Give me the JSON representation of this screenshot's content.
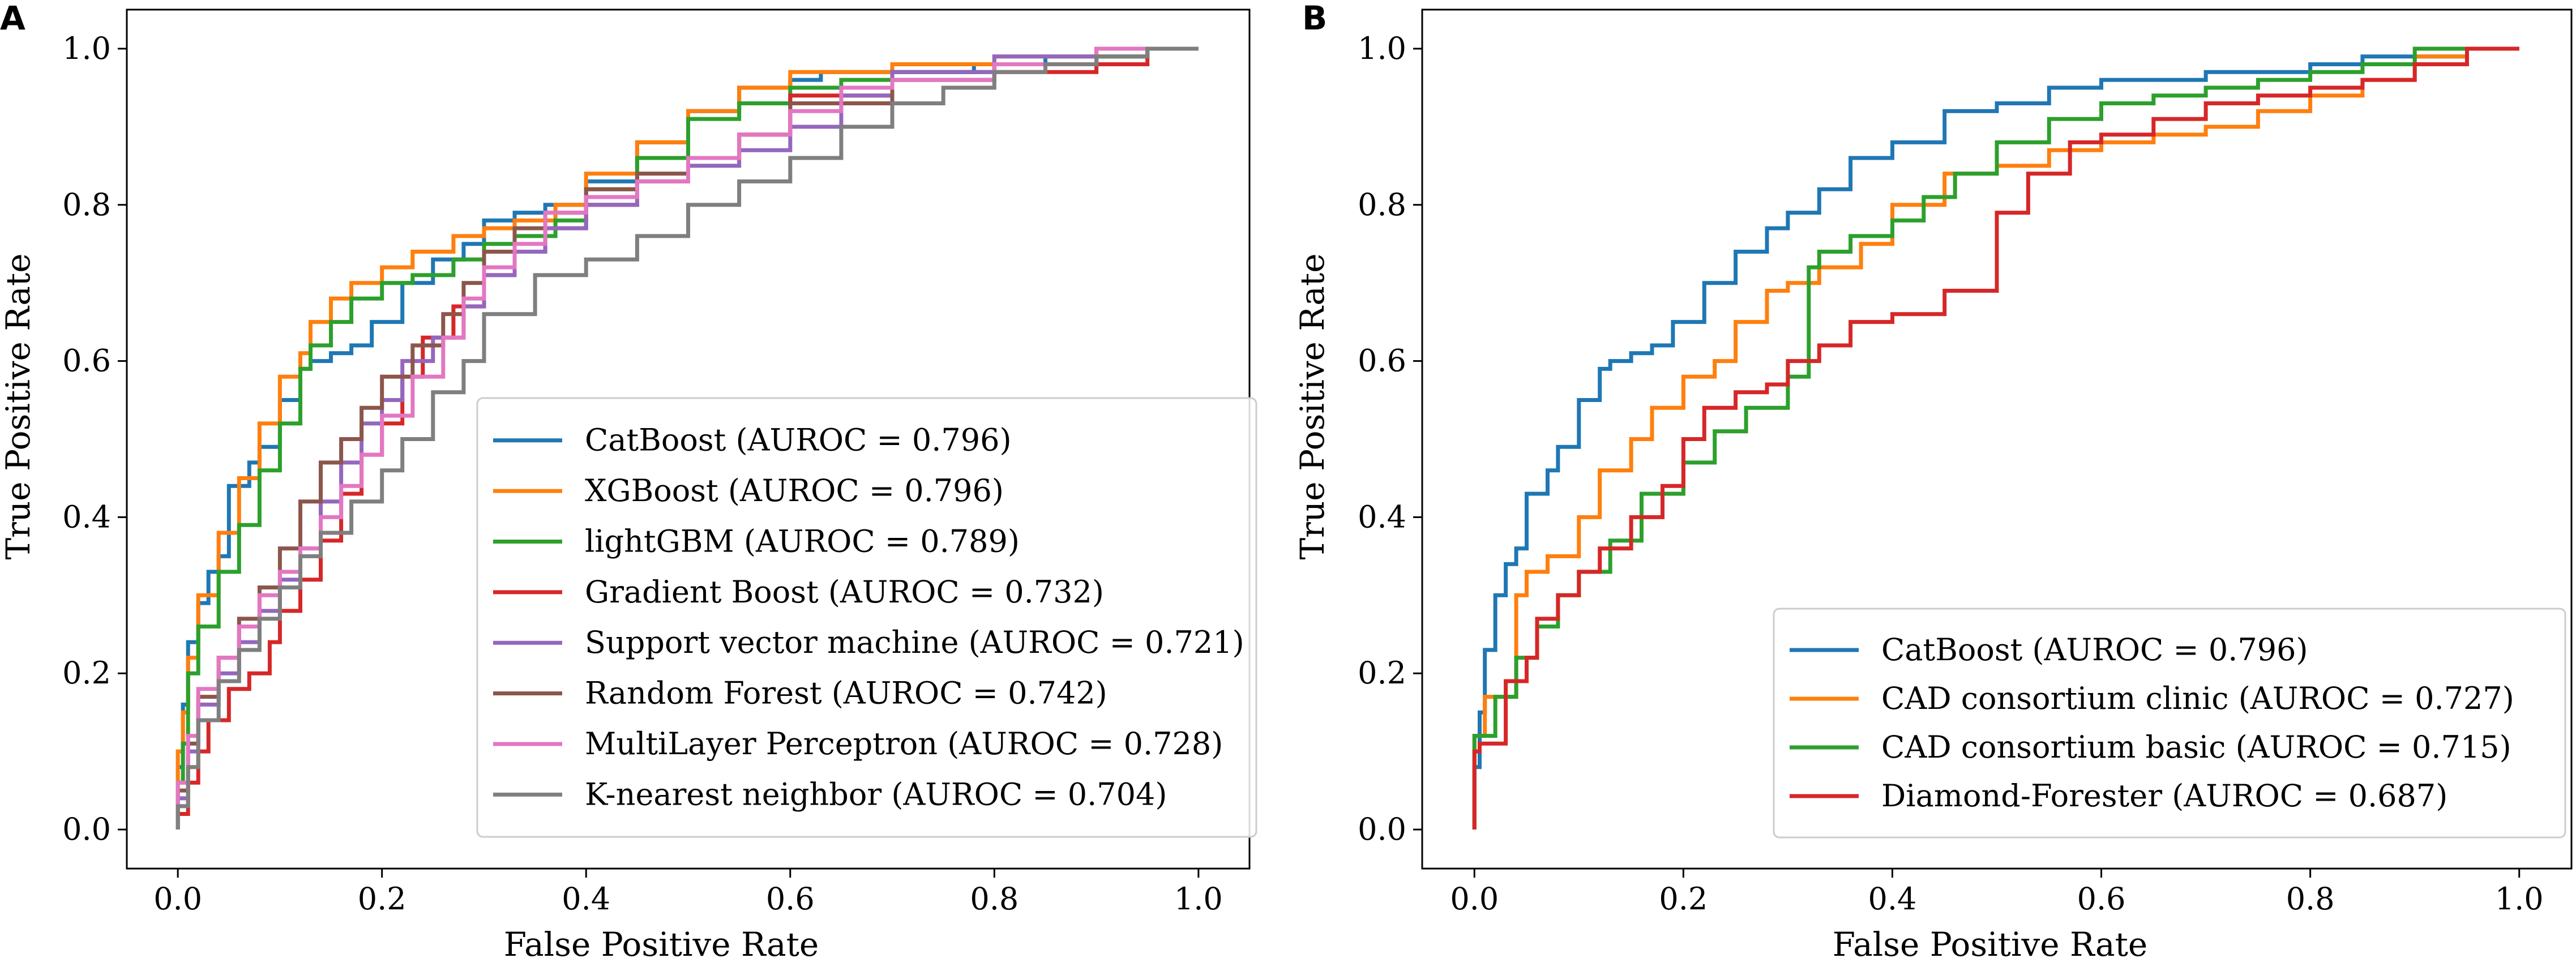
{
  "panel_letters": [
    "A",
    "B"
  ],
  "chart_data": [
    {
      "type": "line",
      "panel": "A",
      "xlabel": "False Positive Rate",
      "ylabel": "True Positive Rate",
      "xlim": [
        -0.05,
        1.05
      ],
      "ylim": [
        -0.05,
        1.05
      ],
      "xticks": [
        0.0,
        0.2,
        0.4,
        0.6,
        0.8,
        1.0
      ],
      "yticks": [
        0.0,
        0.2,
        0.4,
        0.6,
        0.8,
        1.0
      ],
      "xtick_labels": [
        "0.0",
        "0.2",
        "0.4",
        "0.6",
        "0.8",
        "1.0"
      ],
      "ytick_labels": [
        "0.0",
        "0.2",
        "0.4",
        "0.6",
        "0.8",
        "1.0"
      ],
      "grid": false,
      "legend_position": "lower-right",
      "series": [
        {
          "name": "CatBoost (AUROC = 0.796)",
          "color": "#1f77b4",
          "x": [
            0,
            0.005,
            0.01,
            0.02,
            0.03,
            0.04,
            0.05,
            0.07,
            0.08,
            0.1,
            0.12,
            0.13,
            0.15,
            0.17,
            0.19,
            0.22,
            0.25,
            0.28,
            0.3,
            0.33,
            0.36,
            0.4,
            0.45,
            0.5,
            0.55,
            0.6,
            0.63,
            0.68,
            0.72,
            0.78,
            0.85,
            0.9,
            0.95,
            1.0
          ],
          "y": [
            0,
            0.08,
            0.16,
            0.24,
            0.29,
            0.33,
            0.35,
            0.44,
            0.47,
            0.49,
            0.55,
            0.59,
            0.6,
            0.61,
            0.62,
            0.65,
            0.7,
            0.73,
            0.75,
            0.78,
            0.79,
            0.8,
            0.83,
            0.88,
            0.92,
            0.95,
            0.96,
            0.97,
            0.97,
            0.97,
            0.98,
            0.99,
            0.99,
            1.0
          ]
        },
        {
          "name": "XGBoost (AUROC = 0.796)",
          "color": "#ff7f0e",
          "x": [
            0,
            0.005,
            0.01,
            0.02,
            0.04,
            0.06,
            0.08,
            0.1,
            0.12,
            0.13,
            0.15,
            0.17,
            0.2,
            0.23,
            0.27,
            0.3,
            0.33,
            0.37,
            0.4,
            0.45,
            0.5,
            0.55,
            0.6,
            0.65,
            0.7,
            0.8,
            0.9,
            0.95,
            1.0
          ],
          "y": [
            0,
            0.1,
            0.15,
            0.22,
            0.3,
            0.38,
            0.45,
            0.52,
            0.58,
            0.61,
            0.65,
            0.68,
            0.7,
            0.72,
            0.74,
            0.76,
            0.77,
            0.78,
            0.8,
            0.84,
            0.88,
            0.92,
            0.95,
            0.97,
            0.97,
            0.98,
            0.99,
            0.99,
            1.0
          ]
        },
        {
          "name": "lightGBM (AUROC = 0.789)",
          "color": "#2ca02c",
          "x": [
            0,
            0.005,
            0.01,
            0.02,
            0.04,
            0.06,
            0.08,
            0.1,
            0.12,
            0.13,
            0.15,
            0.17,
            0.2,
            0.23,
            0.27,
            0.3,
            0.33,
            0.37,
            0.4,
            0.45,
            0.5,
            0.55,
            0.6,
            0.65,
            0.7,
            0.8,
            0.9,
            0.95,
            1.0
          ],
          "y": [
            0,
            0.06,
            0.11,
            0.2,
            0.26,
            0.33,
            0.39,
            0.46,
            0.52,
            0.59,
            0.62,
            0.65,
            0.68,
            0.7,
            0.71,
            0.73,
            0.75,
            0.76,
            0.78,
            0.82,
            0.86,
            0.91,
            0.93,
            0.95,
            0.96,
            0.97,
            0.98,
            0.99,
            1.0
          ]
        },
        {
          "name": "Gradient Boost (AUROC = 0.732)",
          "color": "#d62728",
          "x": [
            0,
            0.01,
            0.02,
            0.03,
            0.05,
            0.07,
            0.09,
            0.1,
            0.12,
            0.14,
            0.16,
            0.18,
            0.2,
            0.22,
            0.24,
            0.27,
            0.3,
            0.33,
            0.36,
            0.4,
            0.45,
            0.5,
            0.55,
            0.6,
            0.7,
            0.8,
            0.9,
            0.95,
            1.0
          ],
          "y": [
            0,
            0.02,
            0.06,
            0.1,
            0.14,
            0.18,
            0.2,
            0.24,
            0.28,
            0.32,
            0.37,
            0.43,
            0.48,
            0.52,
            0.58,
            0.63,
            0.67,
            0.71,
            0.74,
            0.77,
            0.8,
            0.83,
            0.86,
            0.89,
            0.94,
            0.96,
            0.97,
            0.98,
            1.0
          ]
        },
        {
          "name": "Support vector machine (AUROC = 0.721)",
          "color": "#9467bd",
          "x": [
            0,
            0.01,
            0.02,
            0.04,
            0.06,
            0.08,
            0.1,
            0.12,
            0.14,
            0.16,
            0.18,
            0.2,
            0.22,
            0.25,
            0.28,
            0.3,
            0.33,
            0.36,
            0.4,
            0.45,
            0.5,
            0.55,
            0.6,
            0.65,
            0.7,
            0.8,
            0.9,
            1.0
          ],
          "y": [
            0,
            0.04,
            0.1,
            0.16,
            0.2,
            0.24,
            0.28,
            0.32,
            0.36,
            0.42,
            0.47,
            0.52,
            0.55,
            0.6,
            0.63,
            0.67,
            0.71,
            0.74,
            0.77,
            0.8,
            0.83,
            0.85,
            0.87,
            0.9,
            0.94,
            0.97,
            0.99,
            1.0
          ]
        },
        {
          "name": "Random Forest (AUROC = 0.742)",
          "color": "#8c564b",
          "x": [
            0,
            0.01,
            0.02,
            0.04,
            0.06,
            0.08,
            0.1,
            0.12,
            0.14,
            0.16,
            0.18,
            0.2,
            0.23,
            0.26,
            0.28,
            0.3,
            0.33,
            0.36,
            0.4,
            0.45,
            0.5,
            0.55,
            0.6,
            0.7,
            0.8,
            0.9,
            1.0
          ],
          "y": [
            0,
            0.05,
            0.11,
            0.17,
            0.22,
            0.27,
            0.31,
            0.36,
            0.42,
            0.47,
            0.5,
            0.54,
            0.58,
            0.62,
            0.66,
            0.7,
            0.74,
            0.77,
            0.79,
            0.82,
            0.84,
            0.86,
            0.89,
            0.93,
            0.96,
            0.98,
            1.0
          ]
        },
        {
          "name": "MultiLayer Perceptron (AUROC = 0.728)",
          "color": "#e377c2",
          "x": [
            0,
            0.01,
            0.02,
            0.04,
            0.06,
            0.08,
            0.1,
            0.12,
            0.14,
            0.16,
            0.18,
            0.2,
            0.23,
            0.26,
            0.28,
            0.3,
            0.33,
            0.36,
            0.4,
            0.45,
            0.5,
            0.55,
            0.6,
            0.65,
            0.7,
            0.8,
            0.9,
            1.0
          ],
          "y": [
            0,
            0.06,
            0.12,
            0.18,
            0.22,
            0.26,
            0.3,
            0.33,
            0.36,
            0.4,
            0.44,
            0.48,
            0.53,
            0.58,
            0.63,
            0.68,
            0.72,
            0.75,
            0.79,
            0.81,
            0.83,
            0.86,
            0.89,
            0.92,
            0.95,
            0.96,
            0.98,
            1.0
          ]
        },
        {
          "name": "K-nearest neighbor (AUROC = 0.704)",
          "color": "#7f7f7f",
          "x": [
            0,
            0.01,
            0.02,
            0.04,
            0.06,
            0.08,
            0.1,
            0.12,
            0.14,
            0.17,
            0.2,
            0.22,
            0.25,
            0.28,
            0.3,
            0.35,
            0.4,
            0.45,
            0.5,
            0.55,
            0.6,
            0.65,
            0.7,
            0.75,
            0.8,
            0.85,
            0.9,
            0.95,
            1.0
          ],
          "y": [
            0,
            0.03,
            0.08,
            0.14,
            0.19,
            0.23,
            0.27,
            0.31,
            0.35,
            0.38,
            0.42,
            0.46,
            0.5,
            0.56,
            0.6,
            0.66,
            0.71,
            0.73,
            0.76,
            0.8,
            0.83,
            0.86,
            0.9,
            0.93,
            0.95,
            0.97,
            0.98,
            0.99,
            1.0
          ]
        }
      ]
    },
    {
      "type": "line",
      "panel": "B",
      "xlabel": "False Positive Rate",
      "ylabel": "True Positive Rate",
      "xlim": [
        -0.05,
        1.05
      ],
      "ylim": [
        -0.05,
        1.05
      ],
      "xticks": [
        0.0,
        0.2,
        0.4,
        0.6,
        0.8,
        1.0
      ],
      "yticks": [
        0.0,
        0.2,
        0.4,
        0.6,
        0.8,
        1.0
      ],
      "xtick_labels": [
        "0.0",
        "0.2",
        "0.4",
        "0.6",
        "0.8",
        "1.0"
      ],
      "ytick_labels": [
        "0.0",
        "0.2",
        "0.4",
        "0.6",
        "0.8",
        "1.0"
      ],
      "grid": false,
      "legend_position": "lower-right",
      "series": [
        {
          "name": "CatBoost (AUROC = 0.796)",
          "color": "#1f77b4",
          "x": [
            0,
            0.005,
            0.01,
            0.02,
            0.03,
            0.04,
            0.05,
            0.07,
            0.08,
            0.1,
            0.12,
            0.13,
            0.15,
            0.17,
            0.19,
            0.22,
            0.25,
            0.28,
            0.3,
            0.33,
            0.36,
            0.4,
            0.45,
            0.5,
            0.55,
            0.6,
            0.65,
            0.7,
            0.75,
            0.8,
            0.85,
            0.9,
            0.95,
            1.0
          ],
          "y": [
            0,
            0.08,
            0.15,
            0.23,
            0.3,
            0.34,
            0.36,
            0.43,
            0.46,
            0.49,
            0.55,
            0.59,
            0.6,
            0.61,
            0.62,
            0.65,
            0.7,
            0.74,
            0.77,
            0.79,
            0.82,
            0.86,
            0.88,
            0.92,
            0.93,
            0.95,
            0.96,
            0.96,
            0.97,
            0.97,
            0.98,
            0.99,
            0.99,
            1.0
          ]
        },
        {
          "name": "CAD consortium clinic (AUROC = 0.727)",
          "color": "#ff7f0e",
          "x": [
            0,
            0.01,
            0.02,
            0.04,
            0.05,
            0.07,
            0.1,
            0.12,
            0.15,
            0.17,
            0.2,
            0.23,
            0.25,
            0.28,
            0.3,
            0.33,
            0.37,
            0.4,
            0.45,
            0.5,
            0.55,
            0.6,
            0.65,
            0.7,
            0.75,
            0.8,
            0.85,
            0.9,
            0.95,
            1.0
          ],
          "y": [
            0,
            0.12,
            0.17,
            0.17,
            0.3,
            0.33,
            0.35,
            0.4,
            0.46,
            0.5,
            0.54,
            0.58,
            0.6,
            0.65,
            0.69,
            0.7,
            0.72,
            0.75,
            0.8,
            0.84,
            0.85,
            0.87,
            0.88,
            0.89,
            0.9,
            0.92,
            0.94,
            0.96,
            0.99,
            1.0
          ]
        },
        {
          "name": "CAD consortium basic (AUROC = 0.715)",
          "color": "#2ca02c",
          "x": [
            0,
            0.02,
            0.04,
            0.06,
            0.08,
            0.1,
            0.13,
            0.16,
            0.2,
            0.23,
            0.26,
            0.3,
            0.32,
            0.33,
            0.36,
            0.4,
            0.43,
            0.46,
            0.5,
            0.55,
            0.6,
            0.65,
            0.7,
            0.75,
            0.8,
            0.85,
            0.9,
            0.95,
            1.0
          ],
          "y": [
            0,
            0.12,
            0.17,
            0.22,
            0.26,
            0.3,
            0.33,
            0.37,
            0.43,
            0.47,
            0.51,
            0.54,
            0.58,
            0.72,
            0.74,
            0.76,
            0.78,
            0.81,
            0.84,
            0.88,
            0.91,
            0.93,
            0.94,
            0.95,
            0.96,
            0.97,
            0.98,
            1.0,
            1.0
          ]
        },
        {
          "name": "Diamond-Forester (AUROC = 0.687)",
          "color": "#d62728",
          "x": [
            0,
            0.005,
            0.03,
            0.05,
            0.06,
            0.08,
            0.1,
            0.12,
            0.15,
            0.18,
            0.2,
            0.22,
            0.25,
            0.28,
            0.3,
            0.33,
            0.36,
            0.4,
            0.45,
            0.5,
            0.5,
            0.53,
            0.57,
            0.6,
            0.65,
            0.7,
            0.75,
            0.8,
            0.85,
            0.9,
            0.95,
            1.0
          ],
          "y": [
            0,
            0.1,
            0.11,
            0.19,
            0.22,
            0.27,
            0.3,
            0.33,
            0.36,
            0.4,
            0.44,
            0.5,
            0.54,
            0.56,
            0.57,
            0.6,
            0.62,
            0.65,
            0.66,
            0.69,
            0.78,
            0.79,
            0.84,
            0.88,
            0.89,
            0.91,
            0.93,
            0.94,
            0.95,
            0.96,
            0.98,
            1.0
          ]
        }
      ]
    }
  ]
}
